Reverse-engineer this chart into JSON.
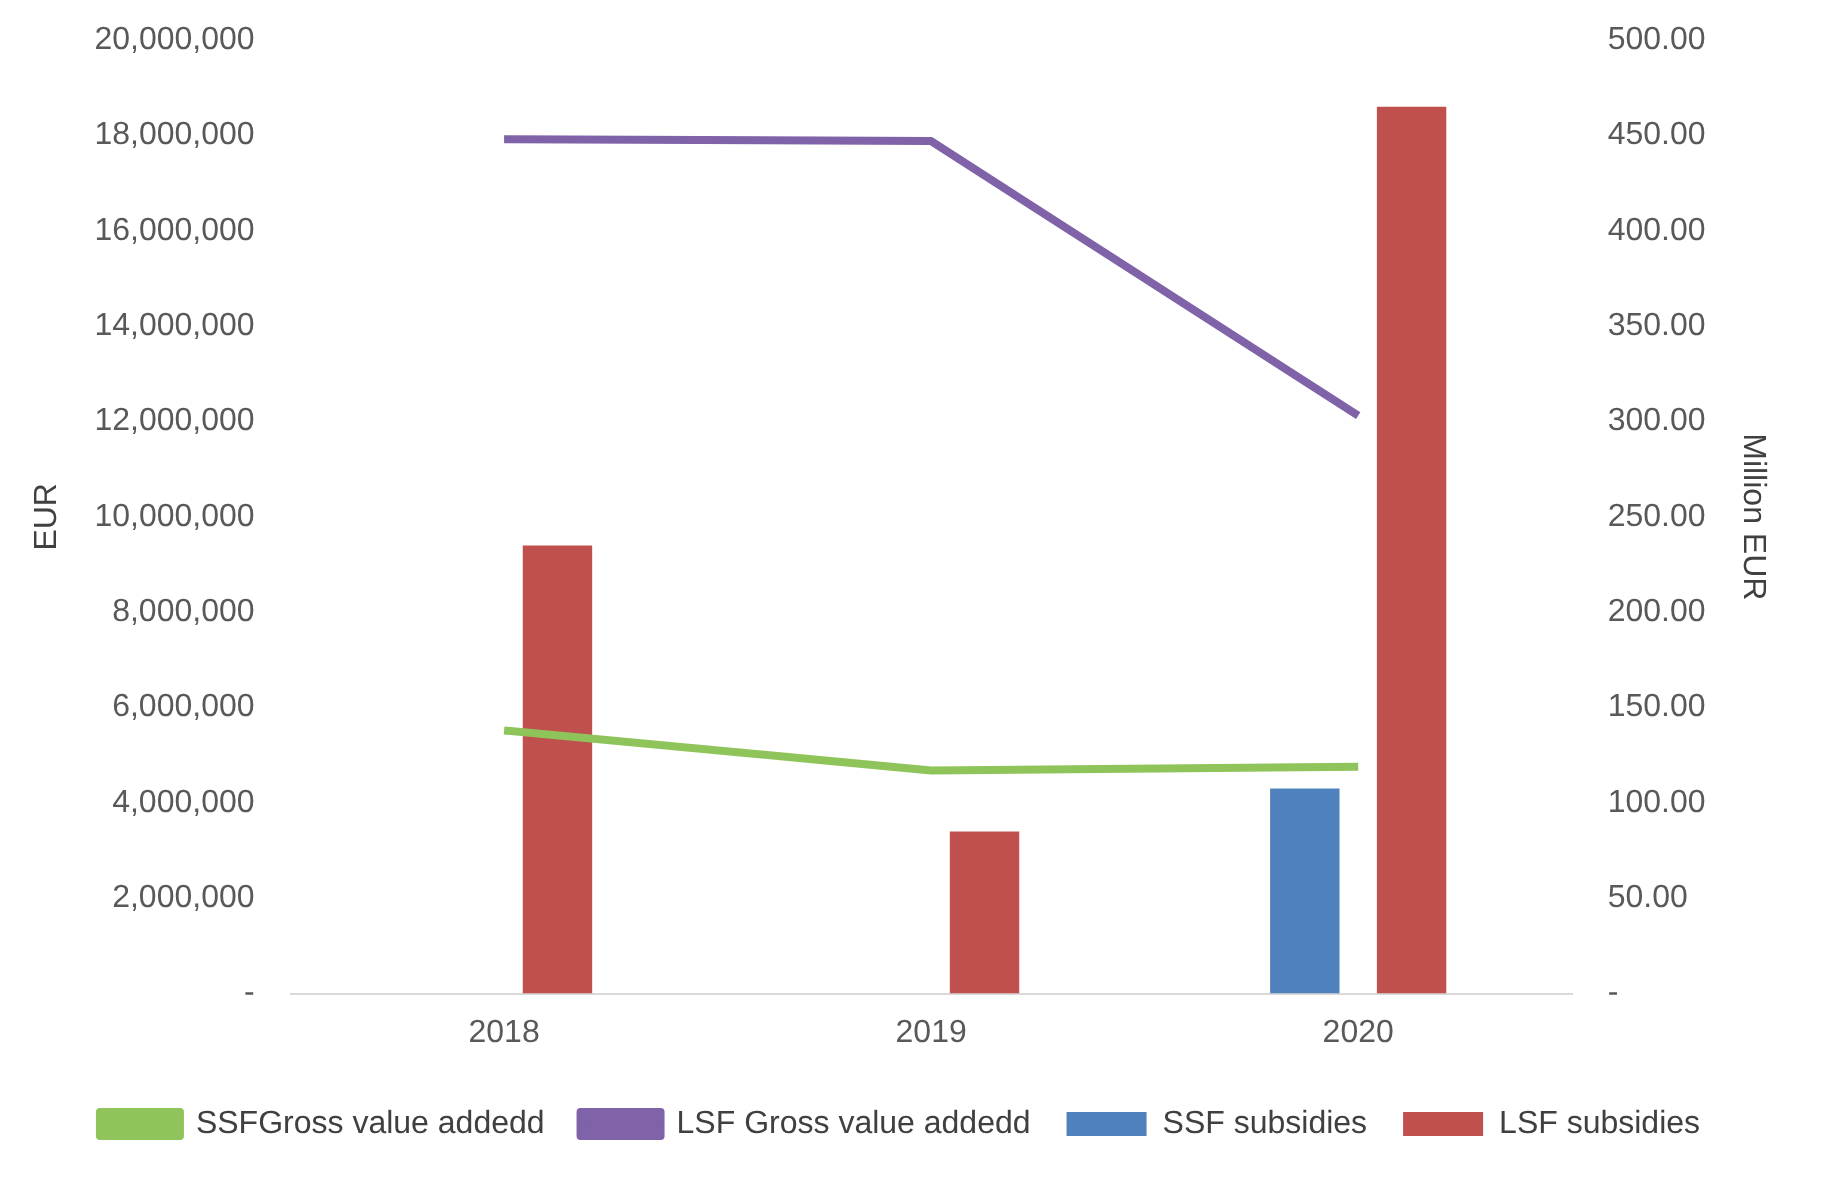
{
  "chart_data": {
    "type": "bar",
    "categories": [
      "2018",
      "2019",
      "2020"
    ],
    "series": [
      {
        "name": "SSF subsidies",
        "color": "#4f81bd",
        "values": [
          0,
          0,
          4300000
        ]
      },
      {
        "name": "LSF subsidies",
        "color": "#c0504d",
        "values": [
          9400000,
          3400000,
          18600000
        ]
      },
      {
        "name": "SSFGross value addedd",
        "type": "line",
        "axis": "y2",
        "color": "#8fc45a",
        "values": [
          138,
          117,
          119
        ]
      },
      {
        "name": "LSF Gross value addedd",
        "type": "line",
        "axis": "y2",
        "color": "#7f62a8",
        "values": [
          448,
          447,
          303
        ]
      }
    ],
    "ylabel": "EUR",
    "y2label": "Million EUR",
    "ylim": [
      0,
      20000000
    ],
    "yticks": [
      {
        "value": 0,
        "label": "-"
      },
      {
        "value": 2000000,
        "label": "2,000,000"
      },
      {
        "value": 4000000,
        "label": "4,000,000"
      },
      {
        "value": 6000000,
        "label": "6,000,000"
      },
      {
        "value": 8000000,
        "label": "8,000,000"
      },
      {
        "value": 10000000,
        "label": "10,000,000"
      },
      {
        "value": 12000000,
        "label": "12,000,000"
      },
      {
        "value": 14000000,
        "label": "14,000,000"
      },
      {
        "value": 16000000,
        "label": "16,000,000"
      },
      {
        "value": 18000000,
        "label": "18,000,000"
      },
      {
        "value": 20000000,
        "label": "20,000,000"
      }
    ],
    "y2lim": [
      0,
      500
    ],
    "y2ticks": [
      {
        "value": 0,
        "label": "-"
      },
      {
        "value": 50,
        "label": "50.00"
      },
      {
        "value": 100,
        "label": "100.00"
      },
      {
        "value": 150,
        "label": "150.00"
      },
      {
        "value": 200,
        "label": "200.00"
      },
      {
        "value": 250,
        "label": "250.00"
      },
      {
        "value": 300,
        "label": "300.00"
      },
      {
        "value": 350,
        "label": "350.00"
      },
      {
        "value": 400,
        "label": "400.00"
      },
      {
        "value": 450,
        "label": "450.00"
      },
      {
        "value": 500,
        "label": "500.00"
      }
    ],
    "grid": false,
    "legend": "bottom"
  }
}
